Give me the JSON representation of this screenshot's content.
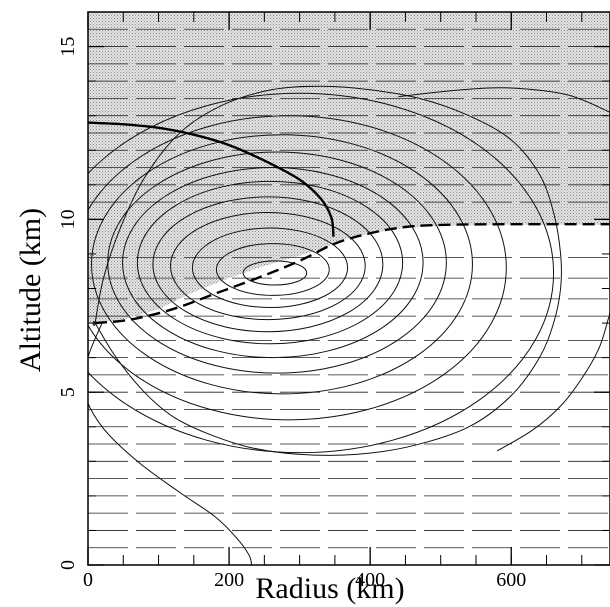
{
  "chart_data": {
    "type": "line",
    "title": "",
    "xlabel": "Radius (km)",
    "ylabel": "Altitude (km)",
    "xlim": [
      0,
      740
    ],
    "ylim": [
      0,
      16
    ],
    "xticks": [
      {
        "value": 0,
        "label": "0"
      },
      {
        "value": 200,
        "label": "200"
      },
      {
        "value": 400,
        "label": "400"
      },
      {
        "value": 600,
        "label": "600"
      }
    ],
    "yticks": [
      {
        "value": 0,
        "label": "0"
      },
      {
        "value": 5,
        "label": "5"
      },
      {
        "value": 10,
        "label": "10"
      },
      {
        "value": 15,
        "label": "15"
      }
    ],
    "minor_x_step": 50,
    "minor_y_step": 1,
    "stratosphere_shading": {
      "color": "#d0d0d0",
      "tropopause_fill_boundary": [
        [
          0,
          7.0
        ],
        [
          50,
          7.1
        ],
        [
          100,
          7.4
        ],
        [
          150,
          7.9
        ],
        [
          200,
          8.3
        ],
        [
          250,
          8.65
        ],
        [
          300,
          8.95
        ],
        [
          340,
          9.2
        ],
        [
          350,
          9.35
        ],
        [
          400,
          9.6
        ],
        [
          450,
          9.75
        ],
        [
          500,
          9.82
        ],
        [
          600,
          9.85
        ],
        [
          740,
          9.85
        ]
      ]
    },
    "thick_solid_curve": [
      [
        0,
        12.8
      ],
      [
        50,
        12.75
      ],
      [
        100,
        12.65
      ],
      [
        150,
        12.45
      ],
      [
        200,
        12.15
      ],
      [
        250,
        11.7
      ],
      [
        300,
        11.15
      ],
      [
        330,
        10.6
      ],
      [
        345,
        10.05
      ],
      [
        348,
        9.5
      ]
    ],
    "thick_dashed_curve": [
      [
        10,
        7.0
      ],
      [
        60,
        7.1
      ],
      [
        120,
        7.4
      ],
      [
        180,
        7.85
      ],
      [
        240,
        8.3
      ],
      [
        300,
        8.8
      ],
      [
        350,
        9.3
      ],
      [
        400,
        9.6
      ],
      [
        450,
        9.78
      ],
      [
        500,
        9.84
      ],
      [
        600,
        9.86
      ],
      [
        740,
        9.86
      ]
    ],
    "horizontal_dashed_levels": [
      0.5,
      1.0,
      1.5,
      2.0,
      2.5,
      3.0,
      3.5,
      4.0,
      4.5,
      5.0,
      5.5,
      6.0,
      6.5,
      7.2,
      7.7,
      8.3,
      8.9,
      10.5,
      11.0,
      11.5,
      12.0,
      12.5,
      13.0,
      13.5,
      14.0,
      14.5,
      15.0,
      15.5
    ],
    "contours": [
      {
        "center": [
          265,
          8.45
        ],
        "rx": 45,
        "ry": 0.35
      },
      {
        "center": [
          262,
          8.55
        ],
        "rx": 80,
        "ry": 0.75
      },
      {
        "center": [
          258,
          8.6
        ],
        "rx": 110,
        "ry": 1.15
      },
      {
        "center": [
          255,
          8.65
        ],
        "rx": 138,
        "ry": 1.55
      },
      {
        "center": [
          255,
          8.7
        ],
        "rx": 163,
        "ry": 1.95
      },
      {
        "center": [
          258,
          8.75
        ],
        "rx": 188,
        "ry": 2.35
      },
      {
        "center": [
          262,
          8.75
        ],
        "rx": 213,
        "ry": 2.75
      },
      {
        "center": [
          268,
          8.75
        ],
        "rx": 240,
        "ry": 3.2
      },
      {
        "center": [
          275,
          8.7
        ],
        "rx": 270,
        "ry": 3.75
      },
      {
        "center": [
          285,
          8.6
        ],
        "rx": 308,
        "ry": 4.4
      },
      {
        "center": [
          300,
          8.45
        ],
        "rx": 360,
        "ry": 5.2
      }
    ],
    "outer_contour": [
      [
        10,
        7.0
      ],
      [
        40,
        6.0
      ],
      [
        80,
        5.0
      ],
      [
        120,
        4.3
      ],
      [
        170,
        3.8
      ],
      [
        230,
        3.4
      ],
      [
        300,
        3.2
      ],
      [
        380,
        3.2
      ],
      [
        460,
        3.45
      ],
      [
        540,
        4.0
      ],
      [
        600,
        4.9
      ],
      [
        640,
        6.0
      ],
      [
        660,
        7.0
      ],
      [
        670,
        8.0
      ],
      [
        670,
        9.0
      ],
      [
        660,
        10.2
      ],
      [
        640,
        11.3
      ],
      [
        600,
        12.3
      ],
      [
        540,
        13.0
      ],
      [
        470,
        13.5
      ],
      [
        400,
        13.75
      ],
      [
        330,
        13.85
      ],
      [
        260,
        13.75
      ],
      [
        190,
        13.3
      ],
      [
        130,
        12.5
      ],
      [
        80,
        11.2
      ],
      [
        45,
        9.7
      ],
      [
        22,
        8.3
      ],
      [
        10,
        7.0
      ]
    ],
    "lower_curve": [
      [
        20,
        7.0
      ],
      [
        0,
        6.0
      ],
      [
        -5,
        5.0
      ],
      [
        20,
        4.0
      ],
      [
        70,
        3.0
      ],
      [
        130,
        2.1
      ],
      [
        180,
        1.4
      ],
      [
        210,
        0.8
      ],
      [
        228,
        0.3
      ],
      [
        232,
        0.0
      ]
    ],
    "upper_right_arc": [
      [
        440,
        13.55
      ],
      [
        530,
        13.75
      ],
      [
        600,
        13.8
      ],
      [
        680,
        13.6
      ],
      [
        740,
        13.1
      ]
    ],
    "right_edge_curve": [
      [
        740,
        7.3
      ],
      [
        725,
        6.3
      ],
      [
        700,
        5.4
      ],
      [
        670,
        4.6
      ],
      [
        630,
        3.9
      ],
      [
        580,
        3.3
      ]
    ]
  }
}
